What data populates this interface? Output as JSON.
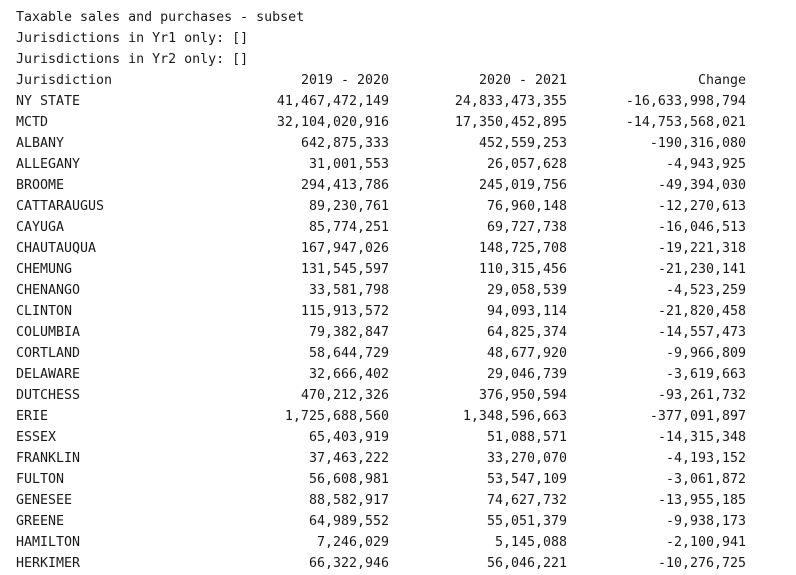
{
  "header_lines": [
    "Taxable sales and purchases - subset",
    "Jurisdictions in Yr1 only: []",
    "Jurisdictions in Yr2 only: []"
  ],
  "table": {
    "columns": [
      "Jurisdiction",
      "2019 - 2020",
      "2020 - 2021",
      "Change"
    ],
    "rows": [
      [
        "NY STATE",
        "41,467,472,149",
        "24,833,473,355",
        "-16,633,998,794"
      ],
      [
        "MCTD",
        "32,104,020,916",
        "17,350,452,895",
        "-14,753,568,021"
      ],
      [
        "ALBANY",
        "642,875,333",
        "452,559,253",
        "-190,316,080"
      ],
      [
        "ALLEGANY",
        "31,001,553",
        "26,057,628",
        "-4,943,925"
      ],
      [
        "BROOME",
        "294,413,786",
        "245,019,756",
        "-49,394,030"
      ],
      [
        "CATTARAUGUS",
        "89,230,761",
        "76,960,148",
        "-12,270,613"
      ],
      [
        "CAYUGA",
        "85,774,251",
        "69,727,738",
        "-16,046,513"
      ],
      [
        "CHAUTAUQUA",
        "167,947,026",
        "148,725,708",
        "-19,221,318"
      ],
      [
        "CHEMUNG",
        "131,545,597",
        "110,315,456",
        "-21,230,141"
      ],
      [
        "CHENANGO",
        "33,581,798",
        "29,058,539",
        "-4,523,259"
      ],
      [
        "CLINTON",
        "115,913,572",
        "94,093,114",
        "-21,820,458"
      ],
      [
        "COLUMBIA",
        "79,382,847",
        "64,825,374",
        "-14,557,473"
      ],
      [
        "CORTLAND",
        "58,644,729",
        "48,677,920",
        "-9,966,809"
      ],
      [
        "DELAWARE",
        "32,666,402",
        "29,046,739",
        "-3,619,663"
      ],
      [
        "DUTCHESS",
        "470,212,326",
        "376,950,594",
        "-93,261,732"
      ],
      [
        "ERIE",
        "1,725,688,560",
        "1,348,596,663",
        "-377,091,897"
      ],
      [
        "ESSEX",
        "65,403,919",
        "51,088,571",
        "-14,315,348"
      ],
      [
        "FRANKLIN",
        "37,463,222",
        "33,270,070",
        "-4,193,152"
      ],
      [
        "FULTON",
        "56,608,981",
        "53,547,109",
        "-3,061,872"
      ],
      [
        "GENESEE",
        "88,582,917",
        "74,627,732",
        "-13,955,185"
      ],
      [
        "GREENE",
        "64,989,552",
        "55,051,379",
        "-9,938,173"
      ],
      [
        "HAMILTON",
        "7,246,029",
        "5,145,088",
        "-2,100,941"
      ],
      [
        "HERKIMER",
        "66,322,946",
        "56,046,221",
        "-10,276,725"
      ]
    ]
  }
}
